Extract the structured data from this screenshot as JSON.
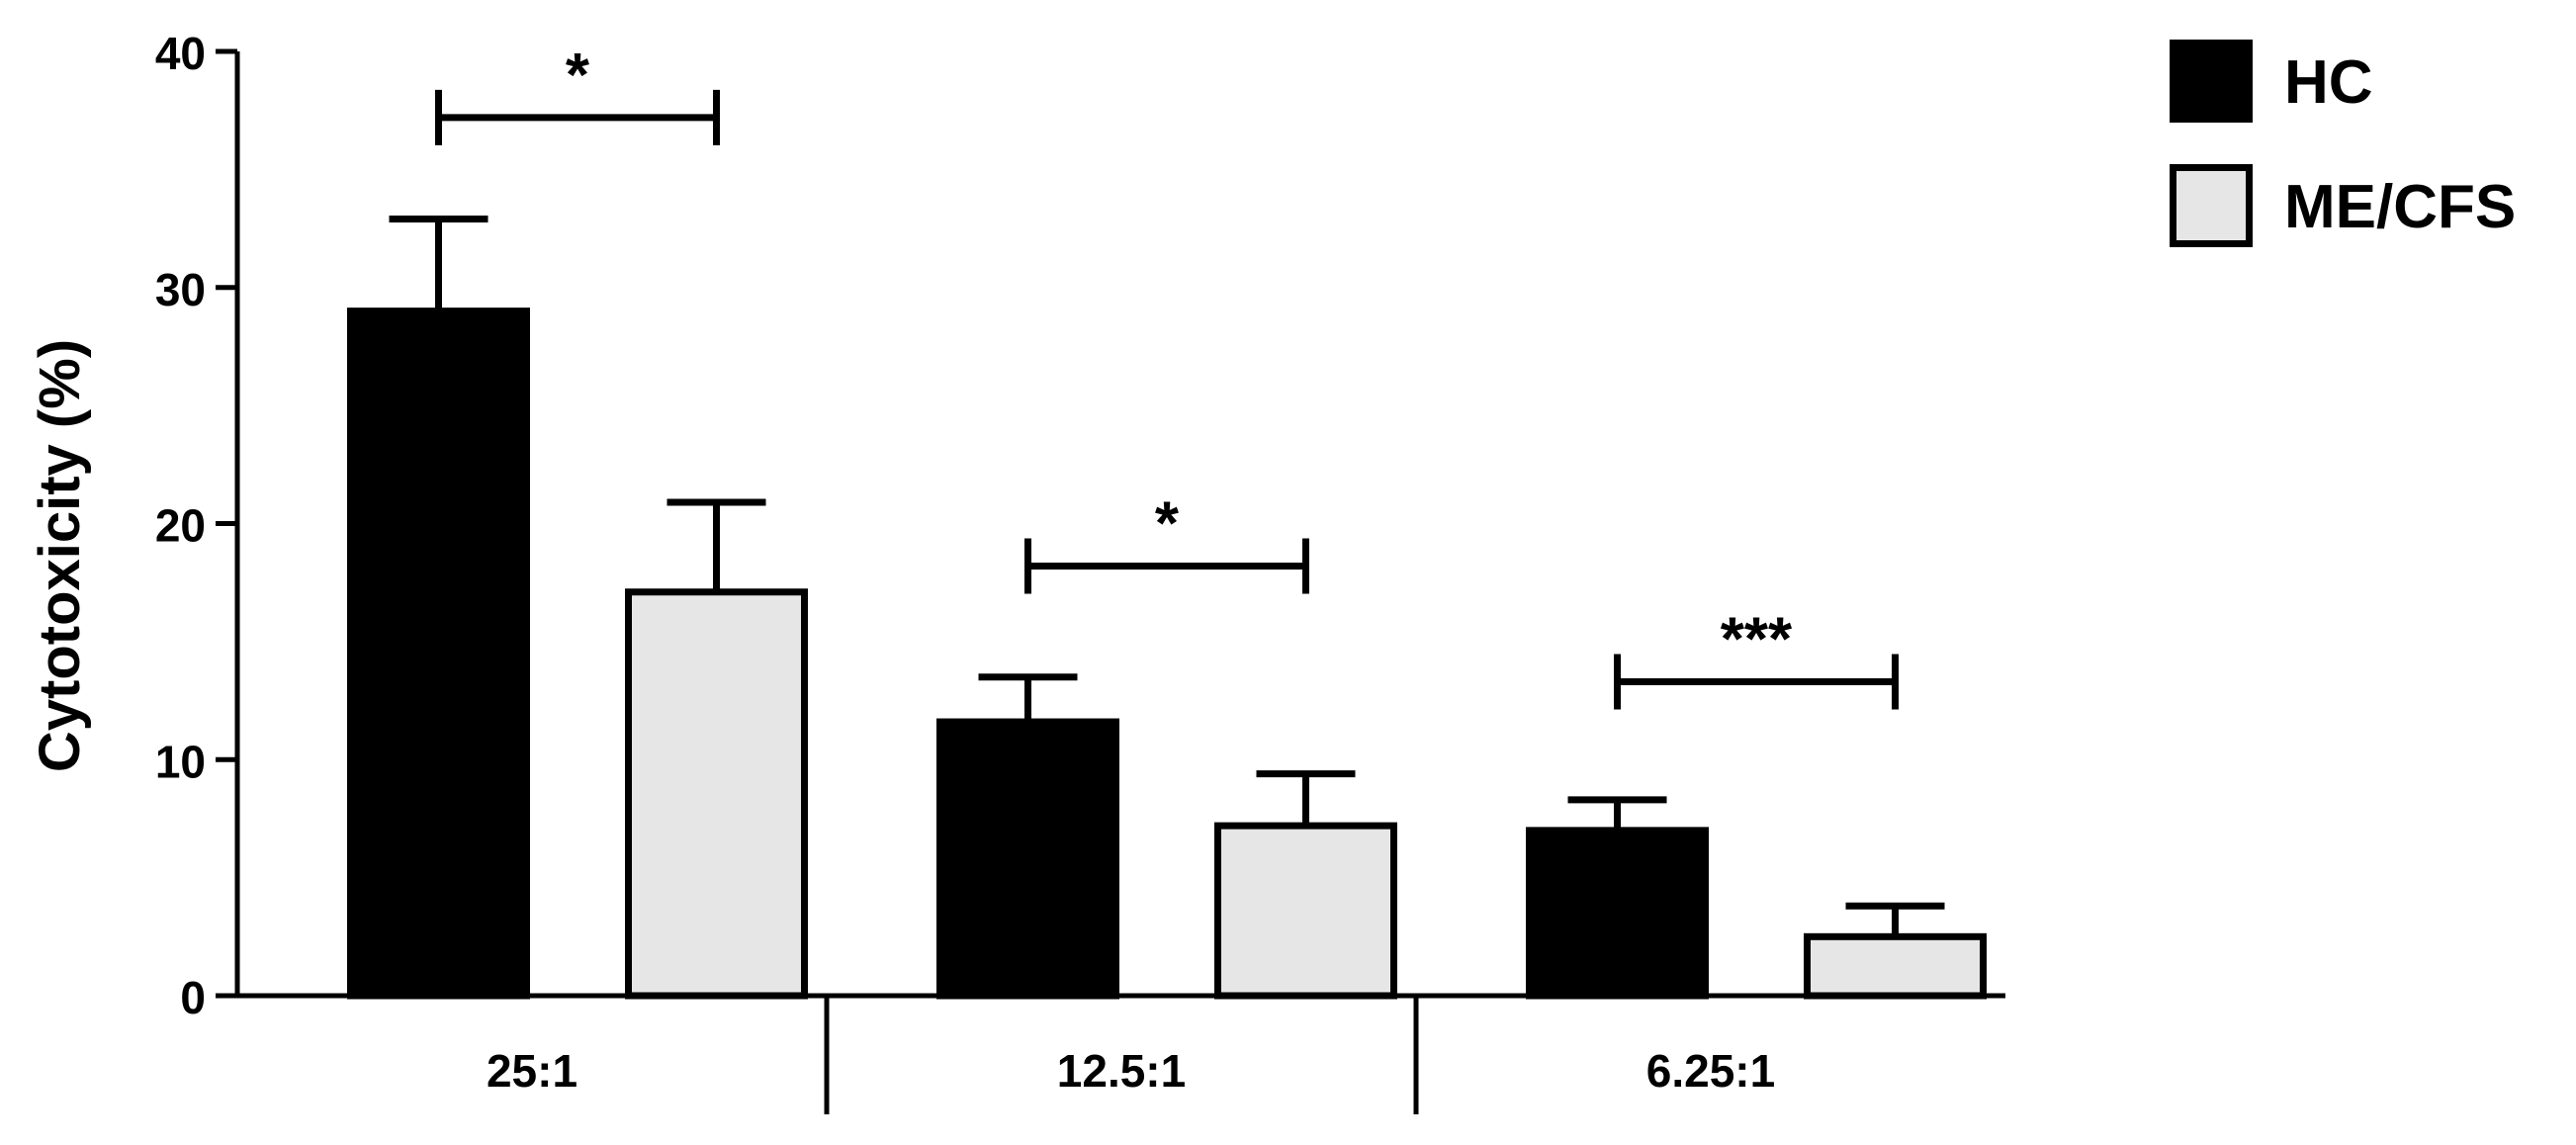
{
  "chart_data": {
    "type": "bar",
    "title": "",
    "xlabel": "",
    "ylabel": "Cytotoxicity (%)",
    "ylim": [
      0,
      40
    ],
    "yticks": [
      0,
      10,
      20,
      30,
      40
    ],
    "grid": false,
    "legend_position": "top-right",
    "categories": [
      "25:1",
      "12.5:1",
      "6.25:1"
    ],
    "series": [
      {
        "name": "HC",
        "color": "#000000",
        "values": [
          29.0,
          11.6,
          7.0
        ],
        "error_upper": [
          3.9,
          1.9,
          1.3
        ]
      },
      {
        "name": "ME/CFS",
        "color": "#e6e6e6",
        "values": [
          17.1,
          7.2,
          2.5
        ],
        "error_upper": [
          3.8,
          2.2,
          1.3
        ]
      }
    ],
    "significance": [
      {
        "category": "25:1",
        "label": "*",
        "y": 37.2
      },
      {
        "category": "12.5:1",
        "label": "*",
        "y": 18.2
      },
      {
        "category": "6.25:1",
        "label": "***",
        "y": 13.3
      }
    ]
  }
}
